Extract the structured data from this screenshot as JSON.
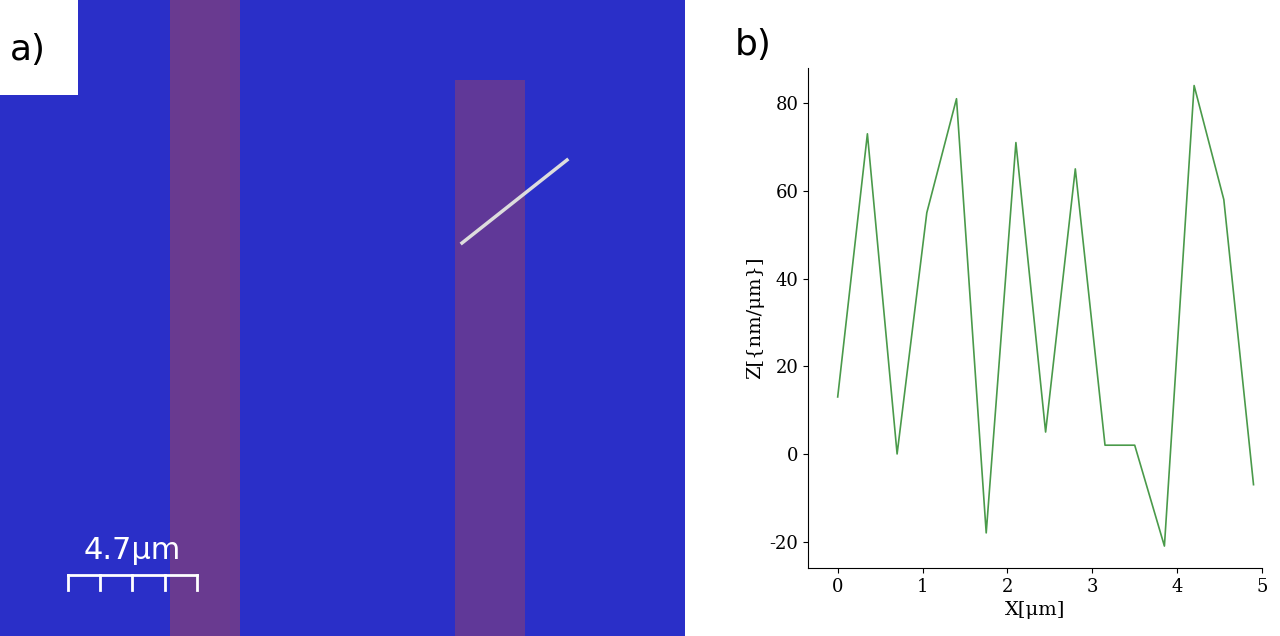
{
  "chart_data": [
    {
      "type": "image",
      "panel_label": "a)",
      "scale_bar": {
        "label": "4.7μm"
      }
    },
    {
      "type": "line",
      "panel_label": "b)",
      "x_label": "X[μm]",
      "y_label": "Z[{nm/μm}]",
      "x": [
        0,
        0.35,
        0.7,
        1.05,
        1.4,
        1.75,
        2.1,
        2.45,
        2.8,
        3.15,
        3.5,
        3.85,
        4.2,
        4.55,
        4.9
      ],
      "values": [
        13,
        73,
        0,
        55,
        81,
        -18,
        71,
        5,
        65,
        2,
        2,
        -21,
        84,
        58,
        -7
      ],
      "color": "#4a9a4a",
      "xlim": [
        -0.35,
        5
      ],
      "xticks": [
        0,
        1,
        2,
        3,
        4,
        5
      ],
      "ylim": [
        -26,
        88
      ],
      "yticks": [
        -20,
        0,
        20,
        40,
        60,
        80
      ],
      "grid": false
    }
  ]
}
